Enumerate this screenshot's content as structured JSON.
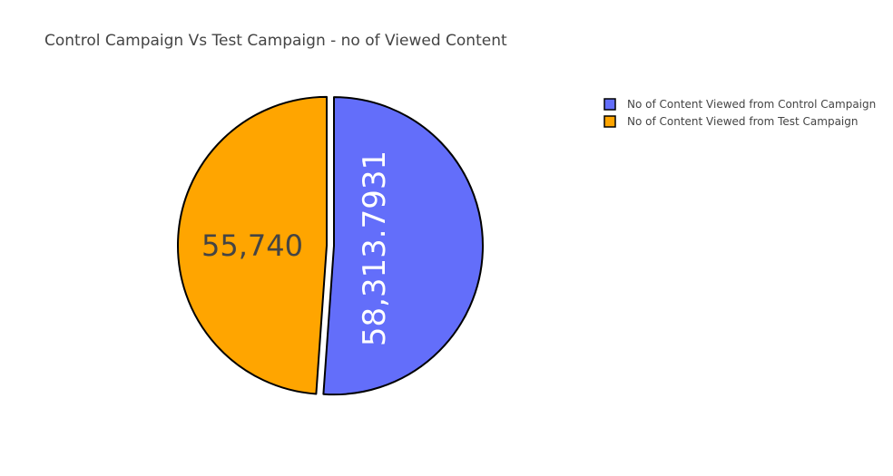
{
  "chart_data": {
    "type": "pie",
    "title": "Control Campaign Vs Test Campaign - no of Viewed Content",
    "labels": [
      "No of Content Viewed from Control Campaign",
      "No of Content Viewed from Test Campaign"
    ],
    "values": [
      58313.7931,
      55740
    ],
    "value_labels": [
      "58,313.7931",
      "55,740"
    ],
    "colors": [
      "#636efa",
      "#ffa500"
    ],
    "label_colors": [
      "#ffffff",
      "#444444"
    ],
    "outline_color": "#000000",
    "pulled": true,
    "legend": "top-right"
  }
}
